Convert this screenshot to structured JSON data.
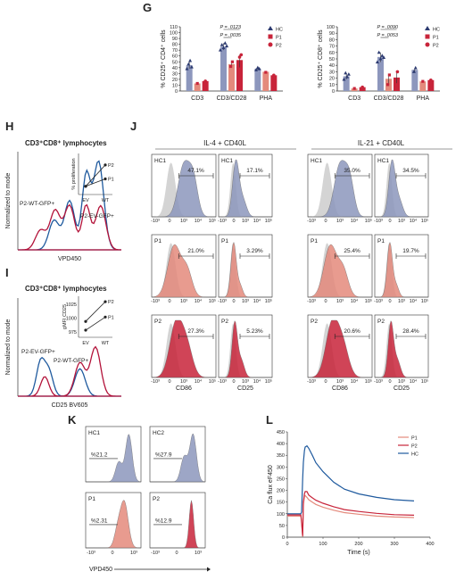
{
  "colors": {
    "hc": "#8d97bd",
    "hc_dark": "#2c3a70",
    "p1": "#e48a7c",
    "p2": "#c8243a",
    "grey": "#c9c9c9",
    "blue": "#1f5a9e",
    "red": "#b3133a"
  },
  "panel_labels": {
    "G": "G",
    "H": "H",
    "I": "I",
    "J": "J",
    "K": "K",
    "L": "L"
  },
  "chart_data": [
    {
      "id": "G-left",
      "type": "bar",
      "ylabel": "% CD25⁺ CD4⁺ cells",
      "categories": [
        "CD3",
        "CD3/CD28",
        "PHA"
      ],
      "yticks": [
        "0",
        "10",
        "20",
        "30",
        "40",
        "50",
        "60",
        "70",
        "80",
        "90",
        "100",
        "110"
      ],
      "ylim": [
        0,
        110
      ],
      "series": [
        {
          "name": "HC",
          "values": [
            44,
            76,
            38
          ]
        },
        {
          "name": "P1",
          "values": [
            13,
            46,
            33
          ]
        },
        {
          "name": "P2",
          "values": [
            17,
            53,
            27
          ]
        }
      ],
      "points": [
        [
          [
            38,
            46,
            52,
            41
          ],
          [
            70,
            79,
            74,
            82,
            77
          ],
          [
            36,
            40,
            38
          ]
        ],
        [
          [
            13
          ],
          [
            42,
            50
          ],
          [
            32
          ]
        ],
        [
          [
            17
          ],
          [
            40,
            58,
            62
          ],
          [
            27
          ]
        ]
      ],
      "pvalues": [
        "P = .0123",
        "P = .0035"
      ],
      "legend": [
        "HC",
        "P1",
        "P2"
      ]
    },
    {
      "id": "G-right",
      "type": "bar",
      "ylabel": "% CD25⁺ CD8⁺ cells",
      "categories": [
        "CD3",
        "CD3/CD28",
        "PHA"
      ],
      "yticks": [
        "0",
        "10",
        "20",
        "30",
        "40",
        "50",
        "60",
        "70",
        "80",
        "90",
        "100"
      ],
      "ylim": [
        0,
        100
      ],
      "series": [
        {
          "name": "HC",
          "values": [
            23,
            53,
            33
          ]
        },
        {
          "name": "P1",
          "values": [
            4,
            19,
            15
          ]
        },
        {
          "name": "P2",
          "values": [
            6,
            21,
            17
          ]
        }
      ],
      "points": [
        [
          [
            18,
            28,
            22,
            26
          ],
          [
            45,
            60,
            50,
            55,
            52
          ],
          [
            30,
            36
          ]
        ],
        [
          [
            4
          ],
          [
            10,
            25
          ],
          [
            15
          ]
        ],
        [
          [
            6
          ],
          [
            10,
            30
          ],
          [
            17
          ]
        ]
      ],
      "pvalues": [
        "P = .0090",
        "P = .0053"
      ],
      "legend": [
        "HC",
        "P1",
        "P2"
      ]
    },
    {
      "id": "H",
      "type": "line",
      "title": "CD3⁺CD8⁺ lymphocytes",
      "xlabel": "VPD450",
      "ylabel": "Normalized to mode",
      "series_labels": [
        "P2-WT-GFP+",
        "P2-EV-GFP+"
      ],
      "inset": {
        "ylabel": "% proliferation",
        "categories": [
          "EV",
          "WT"
        ],
        "series": [
          {
            "name": "P2",
            "values": [
              20,
              72
            ]
          },
          {
            "name": "P1",
            "values": [
              20,
              38
            ]
          }
        ]
      }
    },
    {
      "id": "I",
      "type": "line",
      "title": "CD3⁺CD8⁺ lymphocytes",
      "xlabel": "CD25 BV605",
      "ylabel": "Normalized to mode",
      "series_labels": [
        "P2-EV-GFP+",
        "P2-WT-GFP+"
      ],
      "inset": {
        "ylabel": "gMFI CD25",
        "yticks": [
          "1025",
          "1000",
          "975"
        ],
        "categories": [
          "EV",
          "WT"
        ],
        "series": [
          {
            "name": "P2",
            "values": [
              994,
              1030
            ]
          },
          {
            "name": "P1",
            "values": [
              978,
              1002
            ]
          }
        ]
      }
    },
    {
      "id": "J",
      "type": "area",
      "group_titles": [
        "IL-4 + CD40L",
        "IL-21 + CD40L"
      ],
      "row_labels": [
        "HC1",
        "P1",
        "P2"
      ],
      "xlabels": [
        "CD86",
        "CD25",
        "CD86",
        "CD25"
      ],
      "xticks": [
        "-10³",
        "0",
        "10³",
        "10⁴",
        "10⁵"
      ],
      "percentages": [
        [
          "47.1%",
          "17.1%",
          "35.0%",
          "34.5%"
        ],
        [
          "21.0%",
          "3.29%",
          "25.4%",
          "19.7%"
        ],
        [
          "27.3%",
          "5.23%",
          "20.6%",
          "28.4%"
        ]
      ]
    },
    {
      "id": "K",
      "type": "area",
      "labels": [
        "HC1",
        "HC2",
        "P1",
        "P2"
      ],
      "percentages": [
        "%21.2",
        "%27.9",
        "%2.31",
        "%12.9"
      ],
      "xlabel": "VPD450",
      "xticks": [
        "-10³",
        "0",
        "10³"
      ]
    },
    {
      "id": "L",
      "type": "line",
      "ylabel": "Ca flux eF450",
      "xlabel": "Time (s)",
      "yticks": [
        "0",
        "50",
        "100",
        "150",
        "200",
        "250",
        "300",
        "350",
        "400",
        "450"
      ],
      "xticks": [
        "0",
        "100",
        "200",
        "300",
        "400"
      ],
      "xlim": [
        0,
        400
      ],
      "ylim": [
        0,
        450
      ],
      "series": [
        {
          "name": "P1",
          "x": [
            0,
            38,
            40,
            43,
            45,
            48,
            50,
            55,
            60,
            70,
            80,
            100,
            130,
            160,
            200,
            250,
            300,
            355
          ],
          "y": [
            90,
            90,
            60,
            2,
            140,
            175,
            178,
            170,
            160,
            150,
            140,
            128,
            115,
            105,
            98,
            90,
            86,
            84
          ]
        },
        {
          "name": "P2",
          "x": [
            0,
            38,
            40,
            43,
            45,
            48,
            50,
            55,
            60,
            70,
            80,
            100,
            130,
            160,
            200,
            250,
            300,
            355
          ],
          "y": [
            95,
            95,
            65,
            5,
            150,
            185,
            195,
            195,
            180,
            168,
            158,
            145,
            130,
            118,
            110,
            102,
            96,
            94
          ]
        },
        {
          "name": "HC",
          "x": [
            0,
            38,
            40,
            43,
            45,
            48,
            50,
            55,
            60,
            70,
            80,
            100,
            130,
            160,
            200,
            250,
            300,
            355
          ],
          "y": [
            100,
            100,
            108,
            250,
            320,
            370,
            385,
            390,
            380,
            350,
            318,
            280,
            235,
            205,
            185,
            170,
            160,
            155
          ]
        }
      ]
    }
  ]
}
